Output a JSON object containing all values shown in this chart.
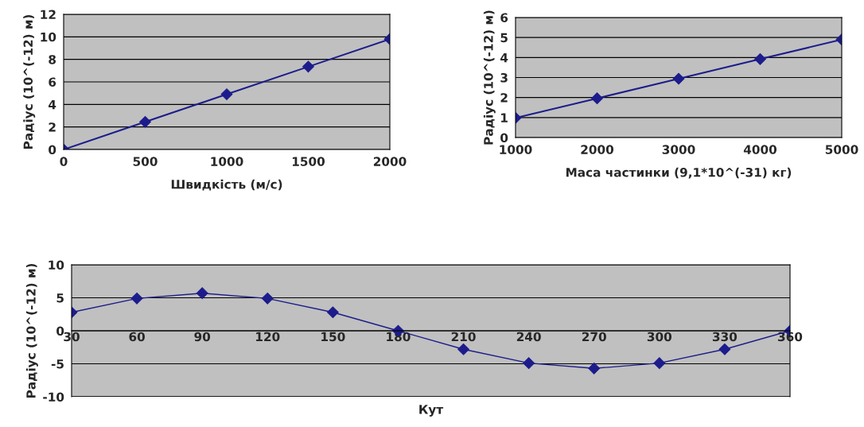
{
  "chart_data": [
    {
      "type": "line",
      "x": [
        0,
        500,
        1000,
        1500,
        2000
      ],
      "xlabel": "Швидкість (м/с)",
      "ylabel": "Радіус (10^(-12) м)",
      "series": [
        {
          "color": "#1c1c8c",
          "values": [
            0,
            2.45,
            4.9,
            7.35,
            9.8
          ]
        }
      ],
      "xlim": [
        0,
        2000
      ],
      "xticks": [
        0,
        500,
        1000,
        1500,
        2000
      ],
      "ylim": [
        0,
        12
      ],
      "yticks": [
        0,
        2,
        4,
        6,
        8,
        10,
        12
      ],
      "grid": "y",
      "marker": "diamond",
      "line_style": "solid"
    },
    {
      "type": "line",
      "x": [
        1000,
        2000,
        3000,
        4000,
        5000
      ],
      "xlabel": "Маса частинки (9,1*10^(-31) кг)",
      "ylabel": "Радіус (10^(-12) м)",
      "series": [
        {
          "color": "#1c1c8c",
          "values": [
            0.98,
            1.96,
            2.94,
            3.92,
            4.9
          ]
        }
      ],
      "xlim": [
        1000,
        5000
      ],
      "xticks": [
        1000,
        2000,
        3000,
        4000,
        5000
      ],
      "ylim": [
        0,
        6
      ],
      "yticks": [
        0,
        1,
        2,
        3,
        4,
        5,
        6
      ],
      "grid": "y",
      "marker": "diamond",
      "line_style": "solid"
    },
    {
      "type": "line",
      "categories": [
        "30",
        "60",
        "90",
        "120",
        "150",
        "180",
        "210",
        "240",
        "270",
        "300",
        "330",
        "360"
      ],
      "xlabel": "Кут",
      "ylabel": "Радіус (10^(-12) м)",
      "series": [
        {
          "color": "#1c1c8c",
          "values": [
            2.8,
            4.9,
            5.7,
            4.9,
            2.8,
            0,
            -2.8,
            -4.9,
            -5.7,
            -4.9,
            -2.8,
            0
          ]
        }
      ],
      "ylim": [
        -10,
        10
      ],
      "yticks": [
        -10,
        -5,
        0,
        5,
        10
      ],
      "grid": "y",
      "marker": "diamond",
      "line_style": "solid"
    }
  ]
}
